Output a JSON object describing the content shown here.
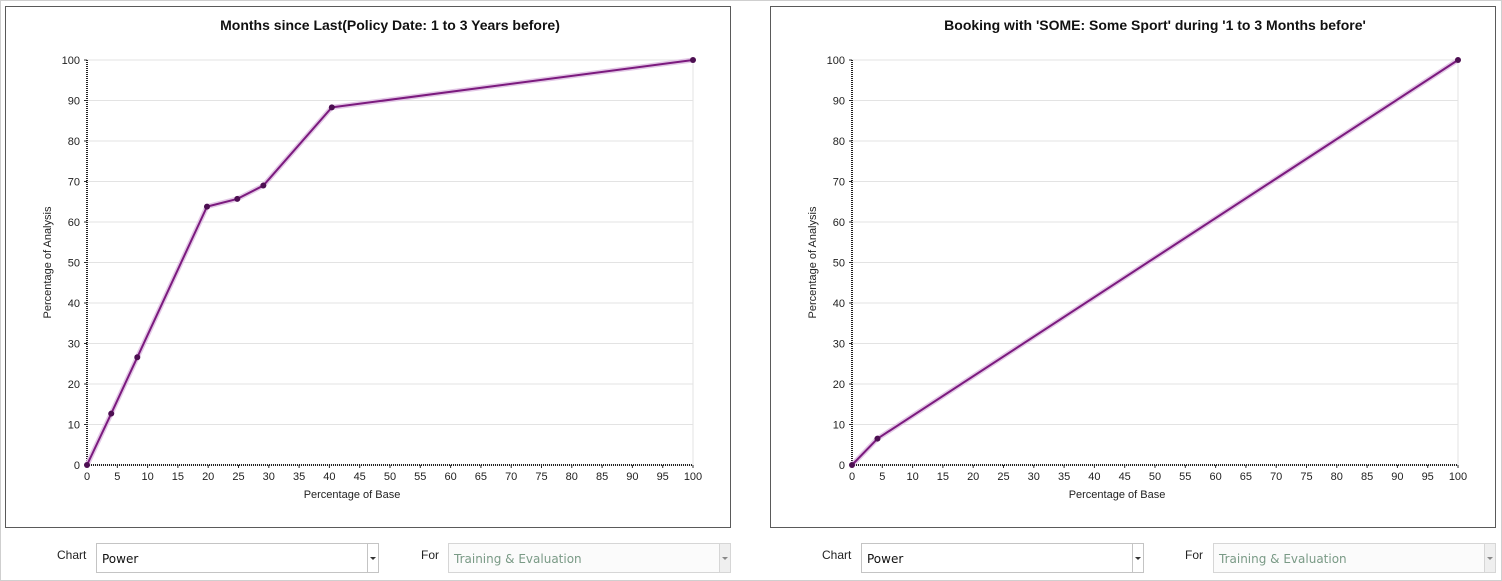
{
  "charts": [
    {
      "title": "Months since Last(Policy Date: 1 to 3 Years before)",
      "xlabel": "Percentage of Base",
      "ylabel": "Percentage of Analysis",
      "controls": {
        "chart_label": "Chart",
        "chart_value": "Power",
        "for_label": "For",
        "for_value": "Training & Evaluation"
      }
    },
    {
      "title": "Booking with 'SOME: Some Sport' during '1 to 3 Months before'",
      "xlabel": "Percentage of Base",
      "ylabel": "Percentage of Analysis",
      "controls": {
        "chart_label": "Chart",
        "chart_value": "Power",
        "for_label": "For",
        "for_value": "Training & Evaluation"
      }
    }
  ],
  "chart_data": [
    {
      "type": "line",
      "title": "Months since Last(Policy Date: 1 to 3 Years before)",
      "xlabel": "Percentage of Base",
      "ylabel": "Percentage of Analysis",
      "xlim": [
        0,
        100
      ],
      "ylim": [
        0,
        100
      ],
      "xticks": [
        0,
        5,
        10,
        15,
        20,
        25,
        30,
        35,
        40,
        45,
        50,
        55,
        60,
        65,
        70,
        75,
        80,
        85,
        90,
        95,
        100
      ],
      "yticks": [
        0,
        10,
        20,
        30,
        40,
        50,
        60,
        70,
        80,
        90,
        100
      ],
      "grid": "horizontal",
      "color": "#7b1a7e",
      "series": [
        {
          "x": [
            0,
            4,
            8.3,
            19.8,
            24.8,
            29.1,
            40.4,
            100
          ],
          "y": [
            0,
            12.7,
            26.6,
            63.8,
            65.7,
            69.0,
            88.3,
            100
          ]
        }
      ]
    },
    {
      "type": "line",
      "title": "Booking with 'SOME: Some Sport' during '1 to 3 Months before'",
      "xlabel": "Percentage of Base",
      "ylabel": "Percentage of Analysis",
      "xlim": [
        0,
        100
      ],
      "ylim": [
        0,
        100
      ],
      "xticks": [
        0,
        5,
        10,
        15,
        20,
        25,
        30,
        35,
        40,
        45,
        50,
        55,
        60,
        65,
        70,
        75,
        80,
        85,
        90,
        95,
        100
      ],
      "yticks": [
        0,
        10,
        20,
        30,
        40,
        50,
        60,
        70,
        80,
        90,
        100
      ],
      "grid": "horizontal",
      "color": "#7b1a7e",
      "series": [
        {
          "x": [
            0,
            4.2,
            100
          ],
          "y": [
            0,
            6.5,
            100
          ]
        }
      ]
    }
  ]
}
